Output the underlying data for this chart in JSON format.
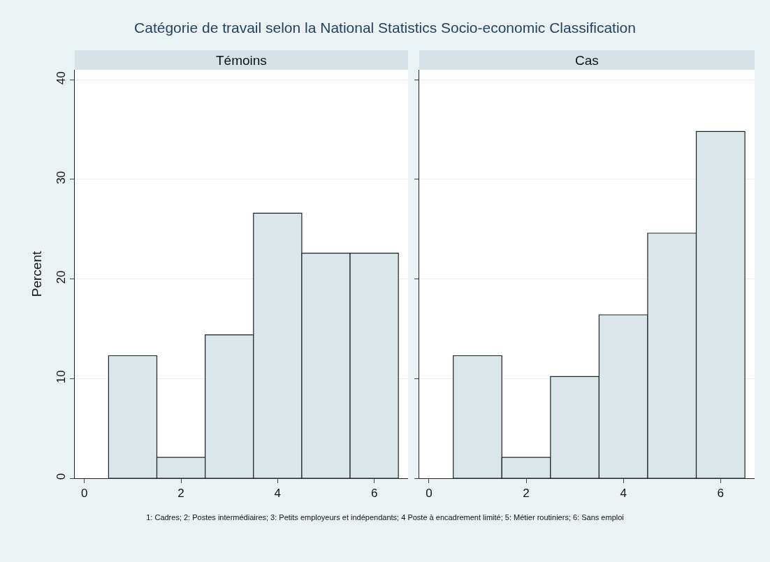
{
  "chart_data": [
    {
      "type": "histogram",
      "title": "Catégorie de travail selon la National Statistics Socio-economic Classification",
      "subtitle": "Témoins",
      "ylabel": "Percent",
      "bins": [
        0.5,
        1.5,
        2.5,
        3.5,
        4.5,
        5.5,
        6.5
      ],
      "values": [
        12.3,
        2.1,
        14.4,
        26.6,
        22.6,
        22.6
      ],
      "color": "#d9e6ea",
      "xlim": [
        -0.2,
        6.7
      ],
      "xticks": [
        0,
        2,
        4,
        6
      ],
      "ylim": [
        0,
        41
      ],
      "yticks": [
        0,
        10,
        20,
        30,
        40
      ],
      "grid": "y",
      "annotations": [
        "1: Cadres; 2: Postes intermédiaires; 3: Petits employeurs et indépendants; 4 Poste à encadrement limité; 5: Métier routiniers; 6: Sans emploi"
      ]
    },
    {
      "type": "histogram",
      "subtitle": "Cas",
      "bins": [
        0.5,
        1.5,
        2.5,
        3.5,
        4.5,
        5.5,
        6.5
      ],
      "values": [
        12.3,
        2.1,
        10.2,
        16.4,
        24.6,
        34.8
      ],
      "color": "#d9e6ea",
      "xlim": [
        -0.2,
        6.7
      ],
      "xticks": [
        0,
        2,
        4,
        6
      ],
      "ylim": [
        0,
        41
      ],
      "yticks": [
        0,
        10,
        20,
        30,
        40
      ],
      "grid": "y",
      "tick_labels": "x"
    }
  ]
}
